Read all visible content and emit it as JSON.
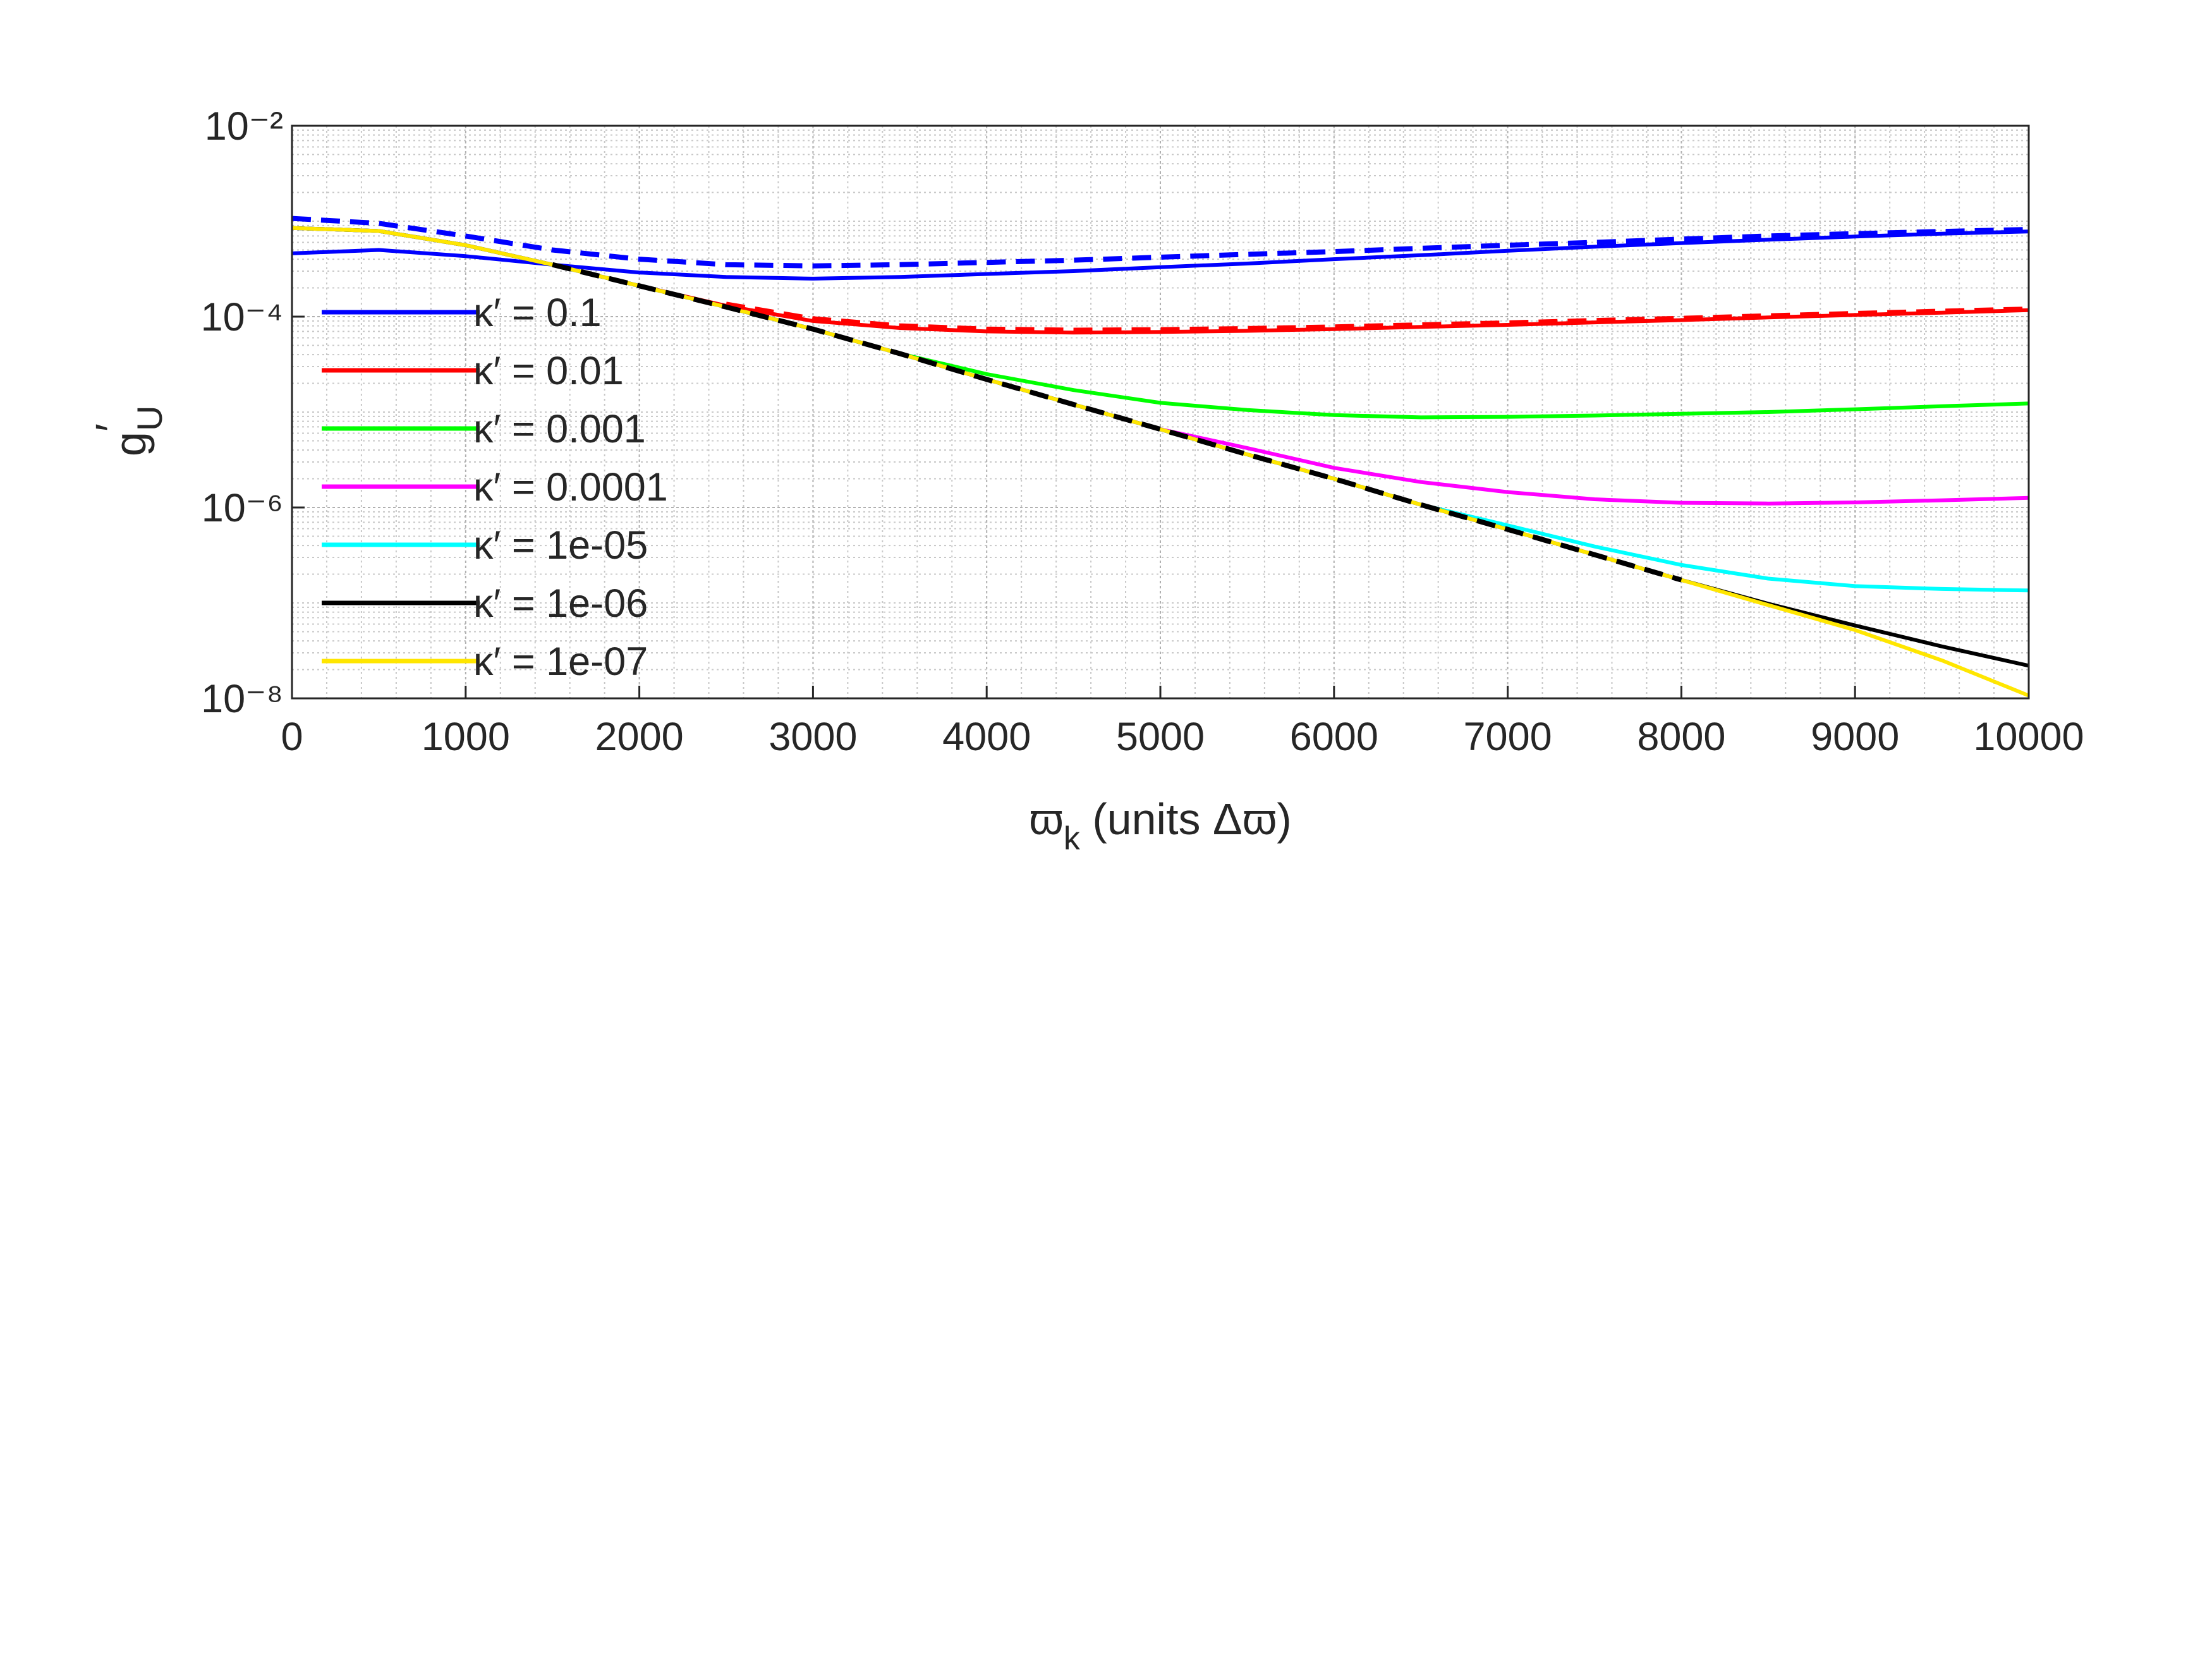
{
  "chart_data": {
    "type": "line",
    "xlabel": {
      "text": "ϖ",
      "sub": "k",
      "rest": " (units Δϖ)"
    },
    "ylabel": {
      "text": "g",
      "sup": "′",
      "sub": "U"
    },
    "log_y": true,
    "grid": true,
    "minor_grid": true,
    "legend_loc": "center left",
    "xlim": [
      0,
      10000
    ],
    "ylim": [
      1e-08,
      0.01
    ],
    "xticks": [
      0,
      1000,
      2000,
      3000,
      4000,
      5000,
      6000,
      7000,
      8000,
      9000,
      10000
    ],
    "yticks": [
      {
        "value": 1e-08,
        "label": "10⁻⁸"
      },
      {
        "value": 1e-06,
        "label": "10⁻⁶"
      },
      {
        "value": 0.0001,
        "label": "10⁻⁴"
      },
      {
        "value": 0.01,
        "label": "10⁻²"
      }
    ],
    "x": [
      0,
      500,
      1000,
      1500,
      2000,
      2500,
      3000,
      3500,
      4000,
      4500,
      5000,
      5500,
      6000,
      6500,
      7000,
      7500,
      8000,
      8500,
      9000,
      9500,
      10000
    ],
    "series": [
      {
        "name": "κ′ = 0.1",
        "color": "#0000ff",
        "values": [
          0.00046,
          0.0005,
          0.00043,
          0.00035,
          0.00029,
          0.00026,
          0.00025,
          0.00026,
          0.00028,
          0.0003,
          0.00033,
          0.00036,
          0.0004,
          0.00044,
          0.00049,
          0.00054,
          0.00059,
          0.00064,
          0.00069,
          0.00074,
          0.00078
        ]
      },
      {
        "name": "κ′ = 0.01",
        "color": "#ff0000",
        "values": [
          0.00085,
          0.00079,
          0.00056,
          0.00035,
          0.00021,
          0.00013,
          9e-05,
          7.6e-05,
          7e-05,
          6.8e-05,
          6.9e-05,
          7.1e-05,
          7.4e-05,
          7.8e-05,
          8.2e-05,
          8.7e-05,
          9.2e-05,
          9.8e-05,
          0.000104,
          0.00011,
          0.000117
        ]
      },
      {
        "name": "κ′ = 0.001",
        "color": "#00ff00",
        "values": [
          0.00085,
          0.00079,
          0.00056,
          0.00035,
          0.00021,
          0.000126,
          7.4e-05,
          4.1e-05,
          2.5e-05,
          1.7e-05,
          1.25e-05,
          1.05e-05,
          9.3e-06,
          8.8e-06,
          8.9e-06,
          9.2e-06,
          9.6e-06,
          1e-05,
          1.07e-05,
          1.15e-05,
          1.23e-05
        ]
      },
      {
        "name": "κ′ = 0.0001",
        "color": "#ff00ff",
        "values": [
          0.00085,
          0.00079,
          0.00056,
          0.00035,
          0.00021,
          0.000126,
          7.4e-05,
          4.1e-05,
          2.2e-05,
          1.2e-05,
          6.6e-06,
          4.2e-06,
          2.6e-06,
          1.85e-06,
          1.45e-06,
          1.22e-06,
          1.12e-06,
          1.1e-06,
          1.13e-06,
          1.19e-06,
          1.26e-06
        ]
      },
      {
        "name": "κ′ = 1e-05",
        "color": "#00ffff",
        "values": [
          0.00085,
          0.00079,
          0.00056,
          0.00035,
          0.00021,
          0.000126,
          7.4e-05,
          4.1e-05,
          2.2e-05,
          1.2e-05,
          6.6e-06,
          3.6e-06,
          2e-06,
          1.07e-06,
          6.5e-07,
          3.9e-07,
          2.5e-07,
          1.8e-07,
          1.5e-07,
          1.4e-07,
          1.35e-07
        ]
      },
      {
        "name": "κ′ = 1e-06",
        "color": "#000000",
        "values": [
          0.00085,
          0.00079,
          0.00056,
          0.00035,
          0.00021,
          0.000126,
          7.4e-05,
          4.1e-05,
          2.2e-05,
          1.2e-05,
          6.6e-06,
          3.6e-06,
          2e-06,
          1.07e-06,
          5.9e-07,
          3.2e-07,
          1.74e-07,
          9.8e-08,
          5.8e-08,
          3.5e-08,
          2.2e-08
        ]
      },
      {
        "name": "κ′ = 1e-07",
        "color": "#ffe600",
        "values": [
          0.00085,
          0.00079,
          0.00056,
          0.00035,
          0.00021,
          0.000126,
          7.4e-05,
          4.1e-05,
          2.2e-05,
          1.2e-05,
          6.6e-06,
          3.6e-06,
          2e-06,
          1.07e-06,
          5.9e-07,
          3.2e-07,
          1.74e-07,
          9.5e-08,
          5.2e-08,
          2.5e-08,
          1.07e-08
        ]
      },
      {
        "color": "#0000ff",
        "dashed": true,
        "values": [
          0.00107,
          0.00095,
          0.0007,
          0.0005,
          0.0004,
          0.00035,
          0.00034,
          0.00035,
          0.00037,
          0.00039,
          0.00042,
          0.00045,
          0.00048,
          0.00052,
          0.00056,
          0.0006,
          0.00065,
          0.0007,
          0.00074,
          0.00078,
          0.00082
        ]
      },
      {
        "color": "#ff0000",
        "dashed": true,
        "values": [
          null,
          null,
          null,
          null,
          null,
          0.000135,
          9.5e-05,
          8e-05,
          7.4e-05,
          7.2e-05,
          7.3e-05,
          7.5e-05,
          7.8e-05,
          8.2e-05,
          8.6e-05,
          9.1e-05,
          9.6e-05,
          0.000102,
          0.000108,
          0.000114,
          0.00012
        ]
      },
      {
        "color": "#000000",
        "dashed": true,
        "values": [
          null,
          null,
          null,
          0.00035,
          0.00021,
          0.000126,
          7.4e-05,
          4.1e-05,
          2.2e-05,
          1.2e-05,
          6.6e-06,
          3.6e-06,
          2e-06,
          1.07e-06,
          5.9e-07,
          3.2e-07,
          1.74e-07,
          null,
          null,
          null,
          null
        ]
      }
    ]
  }
}
